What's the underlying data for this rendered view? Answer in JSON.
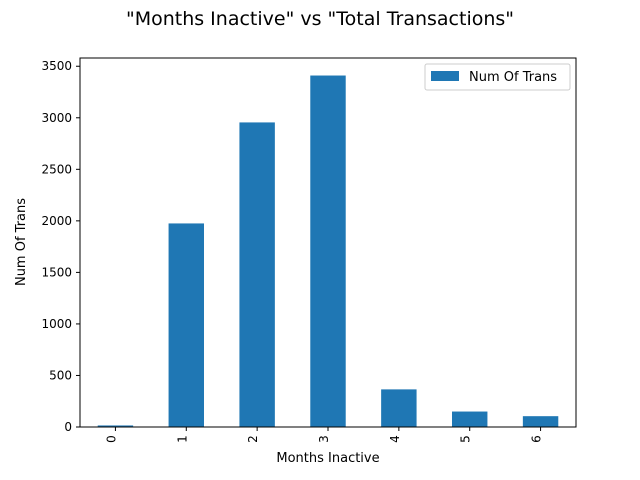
{
  "chart_data": {
    "type": "bar",
    "title": "\"Months Inactive\" vs \"Total Transactions\"",
    "xlabel": "Months Inactive",
    "ylabel": "Num Of Trans",
    "categories": [
      "0",
      "1",
      "2",
      "3",
      "4",
      "5",
      "6"
    ],
    "series": [
      {
        "name": "Num Of Trans",
        "values": [
          15,
          1975,
          2955,
          3410,
          365,
          150,
          105
        ]
      }
    ],
    "ylim": [
      0,
      3580
    ],
    "yticks": [
      0,
      500,
      1000,
      1500,
      2000,
      2500,
      3000,
      3500
    ],
    "grid": false,
    "legend_position": "top-right",
    "bar_color": "#1f77b4"
  }
}
